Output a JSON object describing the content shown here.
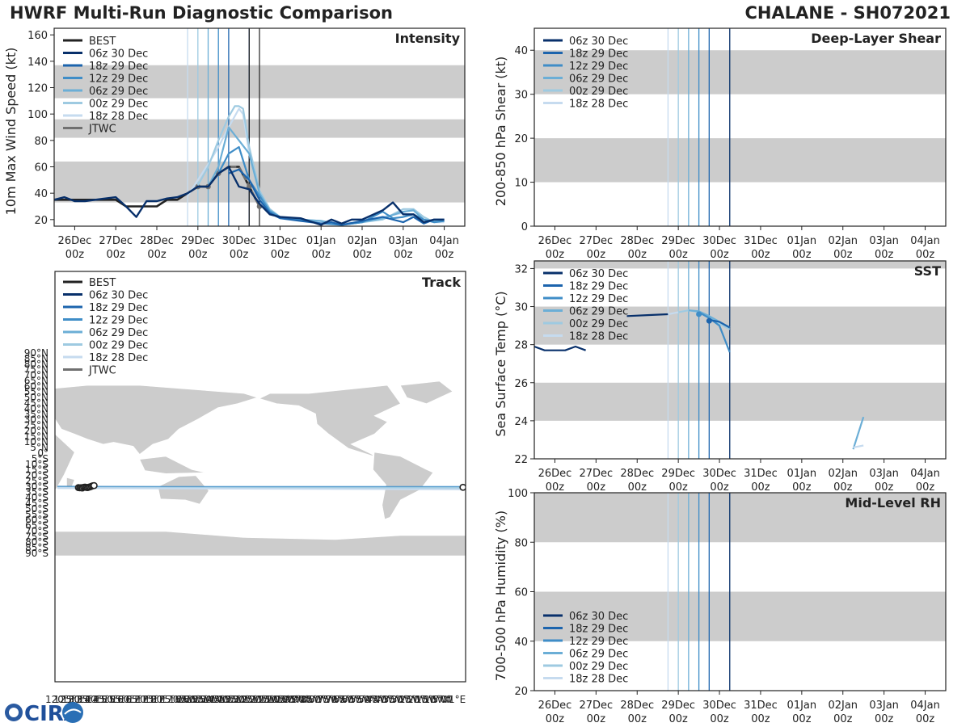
{
  "header": {
    "left_title": "HWRF Multi-Run Diagnostic Comparison",
    "right_title": "CHALANE - SH072021"
  },
  "logo": {
    "text": "CIRA"
  },
  "colors": {
    "best": "#222222",
    "jtwc": "#707070",
    "shade": "#cccccc",
    "runs": [
      "#08306b",
      "#1c64ad",
      "#3f8dc7",
      "#6baed6",
      "#9ecae1",
      "#c6dbef"
    ]
  },
  "runs": [
    "06z 30 Dec",
    "18z 29 Dec",
    "12z 29 Dec",
    "06z 29 Dec",
    "00z 29 Dec",
    "18z 28 Dec"
  ],
  "time_axis": {
    "tick_labels": [
      [
        "26Dec",
        "00z"
      ],
      [
        "27Dec",
        "00z"
      ],
      [
        "28Dec",
        "00z"
      ],
      [
        "29Dec",
        "00z"
      ],
      [
        "30Dec",
        "00z"
      ],
      [
        "31Dec",
        "00z"
      ],
      [
        "01Jan",
        "00z"
      ],
      [
        "02Jan",
        "00z"
      ],
      [
        "03Jan",
        "00z"
      ],
      [
        "04Jan",
        "00z"
      ]
    ],
    "tick_days": [
      1,
      2,
      3,
      4,
      5,
      6,
      7,
      8,
      9,
      10
    ],
    "init_vline_days": [
      3.75,
      4.0,
      4.25,
      4.5,
      4.75,
      5.25
    ],
    "xlim_days": [
      0.5,
      10.5
    ],
    "day_zero": "25 Dec 00z"
  },
  "chart_data": [
    {
      "id": "intensity",
      "type": "line",
      "title": "Intensity",
      "ylabel": "10m Max Wind Speed (kt)",
      "ylim": [
        15,
        165
      ],
      "yticks": [
        20,
        40,
        60,
        80,
        100,
        120,
        140,
        160
      ],
      "bands": [
        [
          33,
          64
        ],
        [
          82,
          96
        ],
        [
          112,
          137
        ]
      ],
      "legend": [
        "BEST",
        "06z 30 Dec",
        "18z 29 Dec",
        "12z 29 Dec",
        "06z 29 Dec",
        "00z 29 Dec",
        "18z 28 Dec",
        "JTWC"
      ],
      "extra_vlines": [
        {
          "day": 5.25,
          "color": "best"
        },
        {
          "day": 5.5,
          "color": "best"
        }
      ],
      "series": [
        {
          "name": "BEST",
          "color": "best",
          "width": 2.6,
          "x": [
            0.5,
            1.0,
            1.5,
            2.0,
            2.25,
            2.5,
            2.75,
            3.0,
            3.25,
            3.5,
            3.75,
            4.0,
            4.25,
            4.5,
            4.75,
            5.0,
            5.25,
            5.5
          ],
          "y": [
            35,
            35,
            35,
            35,
            30,
            30,
            30,
            30,
            35,
            35,
            40,
            45,
            45,
            55,
            60,
            60,
            45,
            30
          ]
        },
        {
          "name": "JTWC",
          "color": "jtwc",
          "width": 2.6,
          "dashed": true,
          "x": [
            3.75,
            4.0,
            4.25,
            4.5,
            4.75,
            5.0,
            5.25,
            5.5
          ],
          "y": [
            40,
            45,
            45,
            55,
            60,
            60,
            45,
            30
          ],
          "markers": [
            4.0,
            4.25,
            4.5,
            5.25,
            5.5
          ]
        },
        {
          "name": "18z 28 Dec",
          "color": 5,
          "width": 2.2,
          "x": [
            3.75,
            4.0,
            4.25,
            4.5,
            4.75,
            5.0,
            5.1,
            5.25,
            5.5,
            5.75,
            6.0,
            6.5,
            7.0,
            7.5,
            8.0,
            8.5,
            9.0,
            9.25,
            9.5,
            9.75,
            10.0
          ],
          "y": [
            38,
            50,
            62,
            75,
            90,
            104,
            100,
            70,
            40,
            28,
            22,
            20,
            18,
            17,
            18,
            22,
            25,
            22,
            20,
            18,
            18
          ]
        },
        {
          "name": "00z 29 Dec",
          "color": 4,
          "width": 2.2,
          "x": [
            4.0,
            4.25,
            4.5,
            4.75,
            4.9,
            5.0,
            5.1,
            5.25,
            5.5,
            5.75,
            6.0,
            6.5,
            7.0,
            7.5,
            8.0,
            8.5,
            9.0,
            9.25,
            9.5,
            9.75,
            10.0
          ],
          "y": [
            46,
            60,
            80,
            98,
            106,
            106,
            104,
            75,
            42,
            28,
            22,
            20,
            19,
            16,
            18,
            20,
            28,
            28,
            22,
            18,
            19
          ]
        },
        {
          "name": "06z 29 Dec",
          "color": 3,
          "width": 2.2,
          "x": [
            4.25,
            4.5,
            4.75,
            5.0,
            5.25,
            5.5,
            5.75,
            6.0,
            6.5,
            7.0,
            7.5,
            8.0,
            8.5,
            9.0,
            9.25,
            9.5,
            9.75,
            10.0
          ],
          "y": [
            45,
            60,
            90,
            80,
            70,
            40,
            27,
            22,
            20,
            19,
            16,
            18,
            21,
            26,
            27,
            20,
            19,
            19
          ]
        },
        {
          "name": "12z 29 Dec",
          "color": 2,
          "width": 2.2,
          "x": [
            4.5,
            4.75,
            5.0,
            5.25,
            5.5,
            5.75,
            6.0,
            6.5,
            7.0,
            7.5,
            8.0,
            8.5,
            8.75,
            9.0,
            9.25,
            9.5,
            9.75,
            10.0
          ],
          "y": [
            55,
            70,
            75,
            50,
            38,
            26,
            22,
            20,
            17,
            16,
            18,
            26,
            21,
            22,
            24,
            20,
            18,
            19
          ]
        },
        {
          "name": "18z 29 Dec",
          "color": 1,
          "width": 2.2,
          "x": [
            4.75,
            5.0,
            5.25,
            5.5,
            5.75,
            6.0,
            6.5,
            7.0,
            7.25,
            7.5,
            8.0,
            8.5,
            8.75,
            9.0,
            9.25,
            9.5,
            9.75,
            10.0
          ],
          "y": [
            55,
            58,
            50,
            35,
            25,
            21,
            19,
            17,
            18,
            16,
            19,
            22,
            20,
            18,
            22,
            17,
            20,
            20
          ]
        },
        {
          "name": "06z 30 Dec",
          "color": 0,
          "width": 2.4,
          "x": [
            0.5,
            0.75,
            1.0,
            1.25,
            1.5,
            1.75,
            2.0,
            2.25,
            2.5,
            2.75,
            3.0,
            3.25,
            3.5,
            3.75,
            4.0,
            4.25,
            4.5,
            4.75,
            5.0,
            5.25,
            5.5,
            5.75,
            6.0,
            6.5,
            7.0,
            7.25,
            7.5,
            7.75,
            8.0,
            8.5,
            8.75,
            9.0,
            9.25,
            9.5,
            9.75,
            10.0
          ],
          "y": [
            35,
            37,
            34,
            34,
            35,
            36,
            37,
            30,
            22,
            34,
            34,
            36,
            37,
            40,
            45,
            45,
            55,
            60,
            45,
            43,
            32,
            24,
            22,
            21,
            16,
            20,
            17,
            20,
            20,
            27,
            33,
            24,
            24,
            18,
            20,
            20
          ]
        }
      ]
    },
    {
      "id": "shear",
      "type": "line",
      "title": "Deep-Layer Shear",
      "ylabel": "200-850 hPa Shear (kt)",
      "ylim": [
        0,
        45
      ],
      "yticks": [
        0,
        10,
        20,
        30,
        40
      ],
      "bands": [
        [
          10,
          20
        ],
        [
          30,
          40
        ]
      ],
      "legend": [
        "06z 30 Dec",
        "18z 29 Dec",
        "12z 29 Dec",
        "06z 29 Dec",
        "00z 29 Dec",
        "18z 28 Dec"
      ],
      "series": []
    },
    {
      "id": "sst",
      "type": "line",
      "title": "SST",
      "ylabel": "Sea Surface Temp (°C)",
      "ylim": [
        22,
        32.4
      ],
      "yticks": [
        22,
        24,
        26,
        28,
        30,
        32
      ],
      "bands": [
        [
          24,
          26
        ],
        [
          28,
          30
        ],
        [
          32,
          33
        ]
      ],
      "legend": [
        "06z 30 Dec",
        "18z 29 Dec",
        "12z 29 Dec",
        "06z 29 Dec",
        "00z 29 Dec",
        "18z 28 Dec"
      ],
      "series": [
        {
          "name": "06z 30 Dec a",
          "color": 0,
          "width": 2.2,
          "x": [
            0.5,
            0.75,
            1.0,
            1.25,
            1.5,
            1.75
          ],
          "y": [
            27.9,
            27.7,
            27.7,
            27.7,
            27.9,
            27.7
          ]
        },
        {
          "name": "06z 30 Dec b",
          "color": 0,
          "width": 2.2,
          "x": [
            2.75,
            3.25,
            3.75
          ],
          "y": [
            29.5,
            29.55,
            29.6
          ]
        },
        {
          "name": "18z 28 Dec",
          "color": 5,
          "width": 2.2,
          "x": [
            3.75,
            4.0,
            4.25,
            4.5,
            4.75,
            5.0,
            5.25
          ],
          "y": [
            29.6,
            29.7,
            29.8,
            29.7,
            29.4,
            29.1,
            28.9
          ]
        },
        {
          "name": "00z 29 Dec",
          "color": 4,
          "width": 2.2,
          "x": [
            4.0,
            4.25,
            4.5,
            4.75,
            5.0,
            5.25
          ],
          "y": [
            29.7,
            29.8,
            29.7,
            29.4,
            29.1,
            28.8
          ]
        },
        {
          "name": "06z 29 Dec",
          "color": 3,
          "width": 2.2,
          "x": [
            4.25,
            4.5,
            4.75,
            5.0,
            5.25
          ],
          "y": [
            29.8,
            29.75,
            29.5,
            29.2,
            28.9
          ]
        },
        {
          "name": "12z 29 Dec",
          "color": 2,
          "width": 2.2,
          "x": [
            4.5,
            4.75,
            5.0,
            5.25
          ],
          "y": [
            29.7,
            29.4,
            29.0,
            27.6
          ]
        },
        {
          "name": "18z 29 Dec",
          "color": 1,
          "width": 2.2,
          "x": [
            4.75,
            5.0,
            5.25
          ],
          "y": [
            29.3,
            29.2,
            28.9
          ]
        },
        {
          "name": "06z 29 Dec b",
          "color": 3,
          "width": 2.2,
          "x": [
            8.25,
            8.5
          ],
          "y": [
            22.5,
            24.2
          ]
        },
        {
          "name": "18z 28 Dec b",
          "color": 5,
          "width": 2.2,
          "x": [
            8.25,
            8.5
          ],
          "y": [
            22.6,
            22.7
          ]
        }
      ],
      "points": [
        {
          "x": 4.5,
          "y": 29.6,
          "color": 2
        },
        {
          "x": 4.75,
          "y": 29.25,
          "color": 1
        }
      ]
    },
    {
      "id": "rh",
      "type": "line",
      "title": "Mid-Level RH",
      "ylabel": "700-500 hPa Humidity (%)",
      "ylim": [
        20,
        100
      ],
      "yticks": [
        20,
        40,
        60,
        80,
        100
      ],
      "bands": [
        [
          40,
          60
        ],
        [
          80,
          100
        ]
      ],
      "legend": [
        "06z 30 Dec",
        "18z 29 Dec",
        "12z 29 Dec",
        "06z 29 Dec",
        "00z 29 Dec",
        "18z 28 Dec"
      ],
      "series": []
    },
    {
      "id": "track",
      "type": "scatter",
      "title": "Track",
      "legend": [
        "BEST",
        "06z 30 Dec",
        "18z 29 Dec",
        "12z 29 Dec",
        "06z 29 Dec",
        "00z 29 Dec",
        "18z 28 Dec",
        "JTWC"
      ],
      "lat_labels": [
        "90°N",
        "85°N",
        "80°N",
        "75°N",
        "70°N",
        "65°N",
        "60°N",
        "55°N",
        "50°N",
        "45°N",
        "40°N",
        "35°N",
        "30°N",
        "25°N",
        "20°N",
        "15°N",
        "10°N",
        "5°N",
        "0°",
        "5°S",
        "10°S",
        "15°S",
        "20°S",
        "25°S",
        "30°S",
        "35°S",
        "40°S",
        "45°S",
        "50°S",
        "55°S",
        "60°S",
        "65°S",
        "70°S",
        "75°S",
        "80°S",
        "85°S",
        "90°S"
      ],
      "lon_label_summary": "120°E … 1°E",
      "lon_labels": [
        "120°E",
        "125°E",
        "130°E",
        "135°E",
        "140°E",
        "145°E",
        "150°E",
        "155°E",
        "160°E",
        "165°E",
        "170°E",
        "175°E",
        "180°",
        "175°W",
        "170°W",
        "165°W",
        "160°W",
        "155°W",
        "150°W",
        "145°W",
        "140°W",
        "135°W",
        "130°W",
        "125°W",
        "120°W",
        "115°W",
        "110°W",
        "105°W",
        "100°W",
        "95°W",
        "90°W",
        "85°W",
        "80°W",
        "75°W",
        "70°W",
        "65°W",
        "60°W",
        "55°W",
        "50°W",
        "45°W",
        "40°W",
        "35°W",
        "30°W",
        "25°W",
        "20°W",
        "15°W",
        "10°W",
        "5°W",
        "0°",
        "1°E"
      ],
      "lat_tracks": [
        -22.5,
        -22.0,
        -22.2,
        -22.8,
        -23.0,
        -23.3
      ],
      "best_track": {
        "lon": [
          53,
          54,
          55,
          56,
          57,
          58,
          59,
          60,
          61,
          62,
          63,
          64,
          65
        ],
        "lat": [
          -22.8,
          -23.0,
          -22.9,
          -23.2,
          -22.5,
          -22.3,
          -22.6,
          -22.8,
          -22.4,
          -22.0,
          -21.5,
          -21.0,
          -20.8
        ]
      }
    }
  ]
}
